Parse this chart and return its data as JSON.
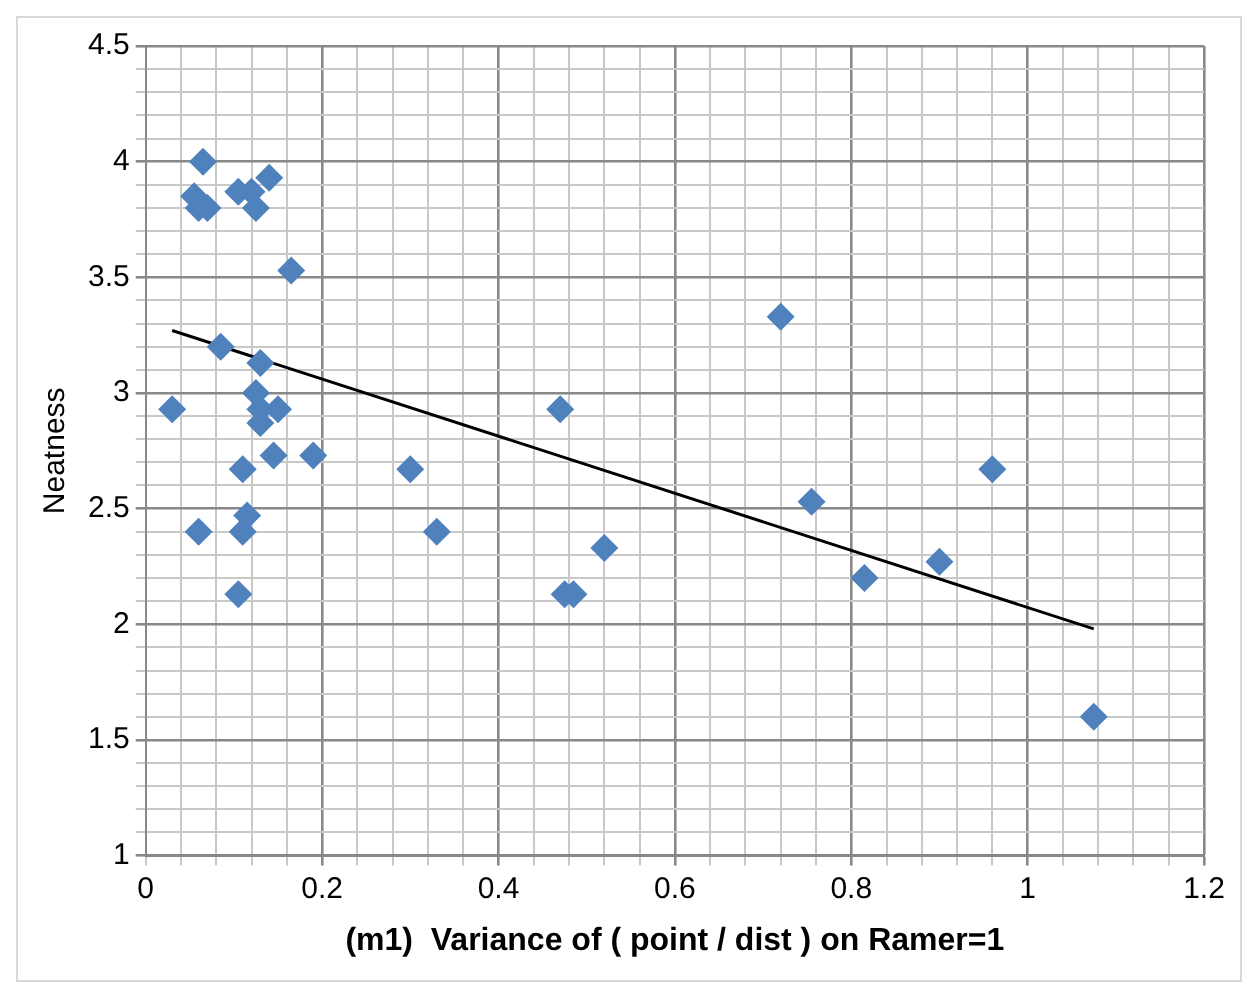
{
  "chart_data": {
    "type": "scatter",
    "xlabel": "(m1)  Variance of ( point / dist ) on Ramer=1",
    "ylabel": "Neatness",
    "marker": "diamond",
    "grid": true,
    "legend": false,
    "xlim": [
      0,
      1.2
    ],
    "ylim": [
      1,
      4.5
    ],
    "xticks": [
      0,
      {
        "value": 0.04,
        "label": null
      },
      {
        "value": 0.08,
        "label": null
      },
      {
        "value": 0.12,
        "label": null
      },
      {
        "value": 0.16,
        "label": null
      },
      0.2,
      {
        "value": 0.24,
        "label": null
      },
      {
        "value": 0.28,
        "label": null
      },
      {
        "value": 0.32,
        "label": null
      },
      {
        "value": 0.36,
        "label": null
      },
      0.4,
      {
        "value": 0.44,
        "label": null
      },
      {
        "value": 0.48,
        "label": null
      },
      {
        "value": 0.52,
        "label": null
      },
      {
        "value": 0.56,
        "label": null
      },
      0.6,
      {
        "value": 0.64,
        "label": null
      },
      {
        "value": 0.68,
        "label": null
      },
      {
        "value": 0.72,
        "label": null
      },
      {
        "value": 0.76,
        "label": null
      },
      0.8,
      {
        "value": 0.84,
        "label": null
      },
      {
        "value": 0.88,
        "label": null
      },
      {
        "value": 0.92,
        "label": null
      },
      {
        "value": 0.96,
        "label": null
      },
      1,
      {
        "value": 1.04,
        "label": null
      },
      {
        "value": 1.08,
        "label": null
      },
      {
        "value": 1.12,
        "label": null
      },
      {
        "value": 1.16,
        "label": null
      },
      1.2
    ],
    "yticks": [
      1,
      {
        "value": 1.1,
        "label": null
      },
      {
        "value": 1.2,
        "label": null
      },
      {
        "value": 1.3,
        "label": null
      },
      {
        "value": 1.4,
        "label": null
      },
      1.5,
      {
        "value": 1.6,
        "label": null
      },
      {
        "value": 1.7,
        "label": null
      },
      {
        "value": 1.8,
        "label": null
      },
      {
        "value": 1.9,
        "label": null
      },
      2,
      {
        "value": 2.1,
        "label": null
      },
      {
        "value": 2.2,
        "label": null
      },
      {
        "value": 2.3,
        "label": null
      },
      {
        "value": 2.4,
        "label": null
      },
      2.5,
      {
        "value": 2.6,
        "label": null
      },
      {
        "value": 2.7,
        "label": null
      },
      {
        "value": 2.8,
        "label": null
      },
      {
        "value": 2.9,
        "label": null
      },
      3,
      {
        "value": 3.1,
        "label": null
      },
      {
        "value": 3.2,
        "label": null
      },
      {
        "value": 3.3,
        "label": null
      },
      {
        "value": 3.4,
        "label": null
      },
      3.5,
      {
        "value": 3.6,
        "label": null
      },
      {
        "value": 3.7,
        "label": null
      },
      {
        "value": 3.8,
        "label": null
      },
      {
        "value": 3.9,
        "label": null
      },
      4,
      {
        "value": 4.1,
        "label": null
      },
      {
        "value": 4.2,
        "label": null
      },
      {
        "value": 4.3,
        "label": null
      },
      {
        "value": 4.4,
        "label": null
      },
      4.5
    ],
    "series": [
      {
        "color": "#4f81bd",
        "x": [
          0.03,
          0.06,
          0.055,
          0.065,
          0.07,
          0.06,
          0.085,
          0.105,
          0.11,
          0.105,
          0.11,
          0.115,
          0.12,
          0.125,
          0.125,
          0.13,
          0.13,
          0.13,
          0.14,
          0.145,
          0.15,
          0.165,
          0.19,
          0.3,
          0.33,
          0.47,
          0.475,
          0.485,
          0.52,
          0.72,
          0.755,
          0.815,
          0.9,
          0.96,
          1.075
        ],
        "values": [
          2.93,
          3.8,
          3.85,
          4.0,
          3.8,
          2.4,
          3.2,
          3.87,
          2.67,
          2.13,
          2.4,
          2.47,
          3.87,
          3.8,
          3.0,
          2.93,
          2.87,
          3.13,
          3.93,
          2.73,
          2.93,
          3.53,
          2.73,
          2.67,
          2.4,
          2.93,
          2.13,
          2.13,
          2.33,
          3.33,
          2.53,
          2.2,
          2.27,
          2.67,
          1.6
        ]
      },
      {
        "type": "line",
        "color": "#000000",
        "marker": "none",
        "x": [
          0.03,
          1.075
        ],
        "values": [
          3.27,
          1.98
        ]
      }
    ]
  }
}
